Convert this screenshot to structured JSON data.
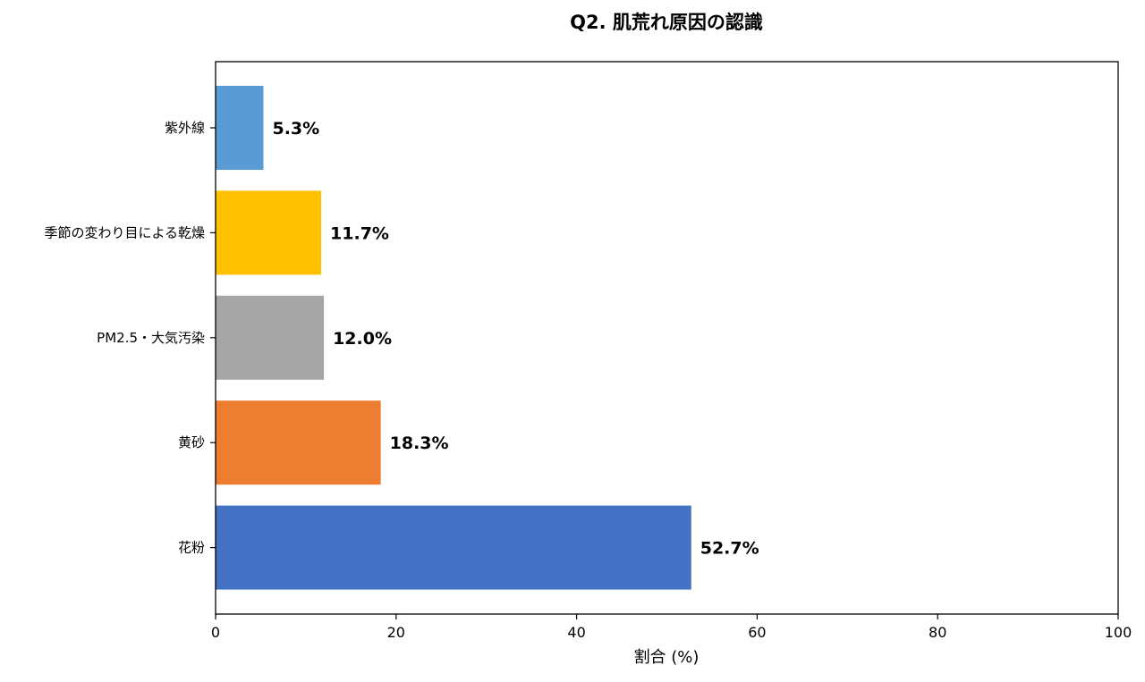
{
  "chart_data": {
    "type": "bar",
    "orientation": "horizontal",
    "title": "Q2. 肌荒れ原因の認識",
    "xlabel": "割合 (%)",
    "ylabel": "",
    "xlim": [
      0,
      100
    ],
    "xticks": [
      0,
      20,
      40,
      60,
      80,
      100
    ],
    "grid": false,
    "categories": [
      "紫外線",
      "季節の変わり目による乾燥",
      "PM2.5・大気汚染",
      "黄砂",
      "花粉"
    ],
    "values": [
      5.3,
      11.7,
      12.0,
      18.3,
      52.7
    ],
    "value_labels": [
      "5.3%",
      "11.7%",
      "12.0%",
      "18.3%",
      "52.7%"
    ],
    "colors": [
      "#5b9bd5",
      "#ffc000",
      "#a5a5a5",
      "#ed7d31",
      "#4472c4"
    ]
  }
}
